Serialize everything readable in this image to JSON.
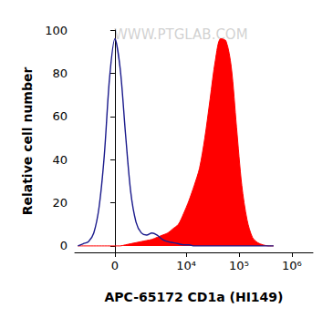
{
  "chart_data": {
    "type": "histogram",
    "xlabel": "APC-65172 CD1a (HI149)",
    "ylabel": "Relative cell number",
    "annotations": [
      "WWW.PTGLAB.COM"
    ],
    "x": [
      -2160,
      -1680,
      -1280,
      -950,
      -670,
      -430,
      -210,
      0,
      210,
      430,
      670,
      950,
      1280,
      1680,
      2160,
      2770,
      3520,
      4460,
      5630,
      7100,
      8950,
      11290,
      14220,
      17900,
      22540,
      28380,
      35740,
      45000,
      56650,
      71320,
      89780,
      113000,
      142300,
      179100,
      225500,
      284000,
      357400,
      450000
    ],
    "series": [
      {
        "type": "line",
        "color": "#1a1a8c",
        "values": [
          0,
          1,
          2,
          6,
          18,
          42,
          78,
          96,
          82,
          52,
          25,
          11,
          6,
          5,
          6,
          5,
          3,
          2,
          1.5,
          1,
          0.5,
          0.5,
          0,
          0,
          0,
          0,
          0,
          0,
          0,
          0,
          0,
          0,
          0,
          0,
          0,
          0,
          0,
          0
        ]
      },
      {
        "type": "area",
        "color": "#ff0000",
        "values": [
          0,
          0,
          0,
          0,
          0,
          0,
          0,
          0,
          0,
          0.5,
          1,
          1.5,
          2,
          2.5,
          3,
          4,
          5,
          6,
          8,
          10,
          15,
          21,
          28,
          36,
          50,
          68,
          86,
          96,
          95,
          83,
          55,
          28,
          12,
          4,
          1.5,
          0.5,
          0,
          0
        ]
      }
    ],
    "xlim": [
      -2500,
      2500000
    ],
    "xticks": [
      0,
      {
        "value": 10000,
        "label": "10⁴"
      },
      {
        "value": 100000,
        "label": "10⁵"
      },
      {
        "value": 1000000,
        "label": "10⁶"
      }
    ],
    "ylim": [
      -3,
      100
    ],
    "yticks": [
      0,
      20,
      40,
      60,
      80,
      100
    ],
    "grid": false
  }
}
